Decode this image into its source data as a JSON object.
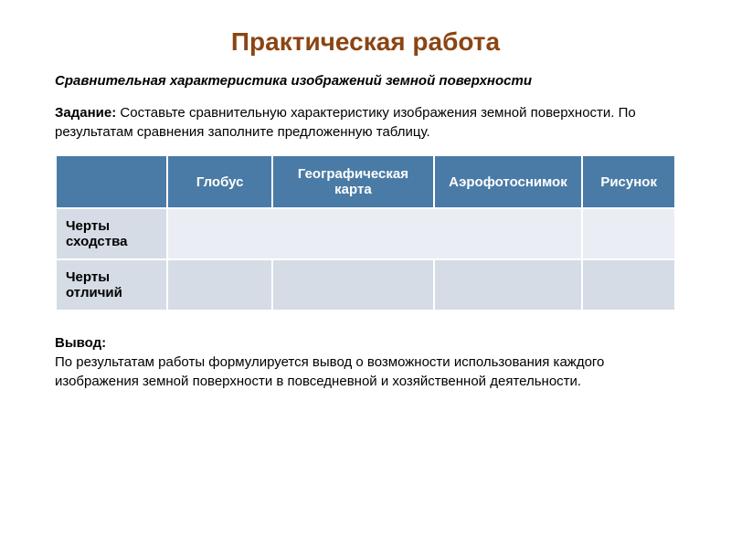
{
  "title": "Практическая работа",
  "subtitle": "Сравнительная характеристика изображений земной поверхности",
  "taskLabel": "Задание:",
  "taskText": " Составьте сравнительную характеристику изображения земной поверхности. По результатам сравнения заполните предложенную таблицу.",
  "table": {
    "headers": {
      "corner": "",
      "col1": "Глобус",
      "col2": "Географическая карта",
      "col3": "Аэрофотоснимок",
      "col4": "Рисунок"
    },
    "rows": [
      {
        "header": "Черты сходства",
        "cells": [
          "",
          "",
          "",
          ""
        ]
      },
      {
        "header": "Черты отличий",
        "cells": [
          "",
          "",
          "",
          ""
        ]
      }
    ],
    "colors": {
      "headerBg": "#4a7ba6",
      "headerText": "#ffffff",
      "rowHeaderBg": "#d5dce6",
      "cellLightBg": "#eaeef4",
      "cellDarkBg": "#d5dce6",
      "border": "#ffffff"
    },
    "colWidths": [
      "18%",
      "17%",
      "26%",
      "24%",
      "15%"
    ]
  },
  "conclusionLabel": "Вывод:",
  "conclusionText": "По результатам работы формулируется вывод о возможности использования каждого изображения земной поверхности в повседневной и хозяйственной деятельности."
}
